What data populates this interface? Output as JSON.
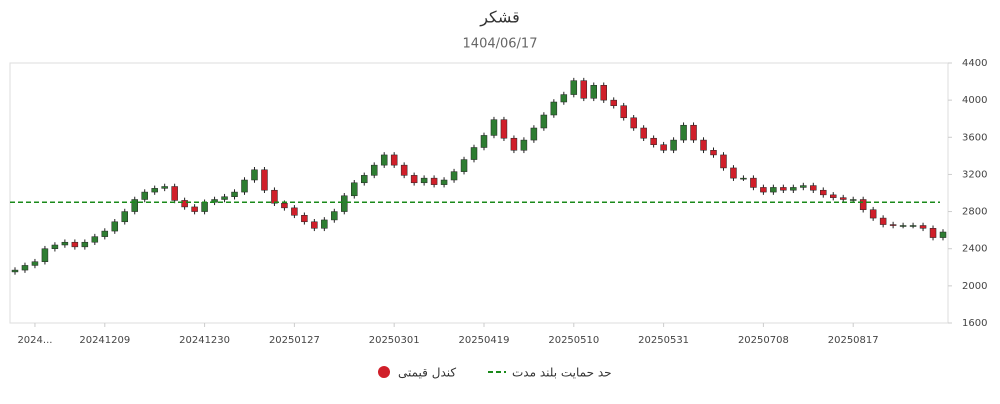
{
  "chart_data": {
    "type": "candlestick",
    "title": "قشکر",
    "subtitle": "1404/06/17",
    "candle_name": "کندل قیمتی",
    "up_color": "#2e7d32",
    "down_color": "#d01f2a",
    "support": {
      "name": "حد حمایت بلند مدت",
      "value": 2900,
      "color": "#1a8a1a"
    },
    "ylim": [
      1600,
      4400
    ],
    "yticks": [
      1600,
      2000,
      2400,
      2800,
      3200,
      3600,
      4000,
      4400
    ],
    "grid": false,
    "categories": [
      null,
      null,
      "2024...",
      null,
      null,
      null,
      null,
      null,
      null,
      "20241209",
      null,
      null,
      null,
      null,
      null,
      null,
      null,
      null,
      null,
      "20241230",
      null,
      null,
      null,
      null,
      null,
      null,
      null,
      null,
      "20250127",
      null,
      null,
      null,
      null,
      null,
      null,
      null,
      null,
      null,
      "20250301",
      null,
      null,
      null,
      null,
      null,
      null,
      null,
      null,
      "20250419",
      null,
      null,
      null,
      null,
      null,
      null,
      null,
      null,
      "20250510",
      null,
      null,
      null,
      null,
      null,
      null,
      null,
      null,
      "20250531",
      null,
      null,
      null,
      null,
      null,
      null,
      null,
      null,
      null,
      "20250708",
      null,
      null,
      null,
      null,
      null,
      null,
      null,
      null,
      "20250817",
      null,
      null,
      null,
      null,
      null,
      null,
      null,
      null,
      null
    ],
    "open": [
      2150,
      2170,
      2220,
      2260,
      2400,
      2440,
      2470,
      2420,
      2470,
      2530,
      2590,
      2690,
      2800,
      2930,
      3010,
      3050,
      3070,
      2920,
      2850,
      2800,
      2900,
      2930,
      2960,
      3010,
      3140,
      3250,
      3030,
      2890,
      2840,
      2760,
      2690,
      2620,
      2710,
      2800,
      2970,
      3110,
      3190,
      3300,
      3410,
      3300,
      3190,
      3110,
      3160,
      3090,
      3140,
      3230,
      3360,
      3490,
      3620,
      3790,
      3590,
      3460,
      3570,
      3700,
      3840,
      3980,
      4060,
      4210,
      4020,
      4160,
      4000,
      3940,
      3810,
      3700,
      3590,
      3520,
      3460,
      3570,
      3730,
      3570,
      3460,
      3410,
      3270,
      3160,
      3160,
      3060,
      3010,
      3060,
      3030,
      3060,
      3080,
      3030,
      2980,
      2950,
      2930,
      2930,
      2820,
      2730,
      2660,
      2650,
      2650,
      2650,
      2620,
      2520
    ],
    "high": [
      2200,
      2250,
      2290,
      2430,
      2470,
      2500,
      2500,
      2500,
      2560,
      2620,
      2720,
      2830,
      2960,
      3040,
      3080,
      3100,
      3100,
      2950,
      2880,
      2930,
      2960,
      2990,
      3040,
      3170,
      3280,
      3280,
      3060,
      2920,
      2870,
      2790,
      2720,
      2740,
      2830,
      3000,
      3140,
      3220,
      3330,
      3440,
      3440,
      3330,
      3220,
      3190,
      3190,
      3170,
      3260,
      3390,
      3520,
      3650,
      3820,
      3820,
      3620,
      3600,
      3730,
      3870,
      4010,
      4090,
      4240,
      4240,
      4190,
      4190,
      4030,
      3970,
      3840,
      3730,
      3620,
      3550,
      3600,
      3760,
      3760,
      3600,
      3490,
      3440,
      3300,
      3190,
      3190,
      3090,
      3090,
      3090,
      3090,
      3110,
      3110,
      3060,
      3010,
      2980,
      2960,
      2960,
      2850,
      2760,
      2690,
      2680,
      2680,
      2680,
      2650,
      2610
    ],
    "low": [
      2120,
      2140,
      2190,
      2230,
      2370,
      2410,
      2390,
      2390,
      2440,
      2500,
      2560,
      2660,
      2770,
      2900,
      2980,
      3020,
      2890,
      2820,
      2770,
      2770,
      2870,
      2900,
      2930,
      2980,
      3110,
      3000,
      2860,
      2810,
      2730,
      2660,
      2590,
      2590,
      2680,
      2770,
      2940,
      3080,
      3160,
      3270,
      3270,
      3160,
      3080,
      3080,
      3060,
      3060,
      3110,
      3200,
      3330,
      3460,
      3590,
      3560,
      3430,
      3430,
      3540,
      3670,
      3810,
      3950,
      4030,
      3990,
      3990,
      3970,
      3910,
      3780,
      3670,
      3560,
      3490,
      3430,
      3430,
      3540,
      3540,
      3430,
      3380,
      3240,
      3130,
      3130,
      3030,
      2980,
      2980,
      3000,
      3000,
      3030,
      3000,
      2950,
      2920,
      2900,
      2900,
      2790,
      2700,
      2630,
      2620,
      2620,
      2620,
      2590,
      2490,
      2490
    ],
    "close": [
      2170,
      2220,
      2260,
      2400,
      2440,
      2470,
      2420,
      2470,
      2530,
      2590,
      2690,
      2800,
      2930,
      3010,
      3050,
      3070,
      2920,
      2850,
      2800,
      2900,
      2930,
      2960,
      3010,
      3140,
      3250,
      3030,
      2890,
      2840,
      2760,
      2690,
      2620,
      2710,
      2800,
      2970,
      3110,
      3190,
      3300,
      3410,
      3300,
      3190,
      3110,
      3160,
      3090,
      3140,
      3230,
      3360,
      3490,
      3620,
      3790,
      3590,
      3460,
      3570,
      3700,
      3840,
      3980,
      4060,
      4210,
      4020,
      4160,
      4000,
      3940,
      3810,
      3700,
      3590,
      3520,
      3460,
      3570,
      3730,
      3570,
      3460,
      3410,
      3270,
      3160,
      3160,
      3060,
      3010,
      3060,
      3030,
      3060,
      3080,
      3030,
      2980,
      2950,
      2930,
      2930,
      2820,
      2730,
      2660,
      2650,
      2650,
      2650,
      2620,
      2520,
      2580
    ]
  }
}
